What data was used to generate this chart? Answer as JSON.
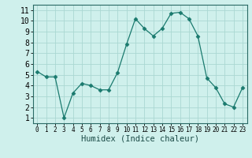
{
  "x": [
    0,
    1,
    2,
    3,
    4,
    5,
    6,
    7,
    8,
    9,
    10,
    11,
    12,
    13,
    14,
    15,
    16,
    17,
    18,
    19,
    20,
    21,
    22,
    23
  ],
  "y": [
    5.3,
    4.8,
    4.8,
    1.0,
    3.3,
    4.2,
    4.0,
    3.6,
    3.6,
    5.2,
    7.8,
    10.2,
    9.3,
    8.6,
    9.3,
    10.7,
    10.8,
    10.2,
    8.6,
    4.7,
    3.8,
    2.3,
    2.0,
    3.8
  ],
  "line_color": "#1a7a6e",
  "marker": "D",
  "marker_size": 2.5,
  "bg_color": "#cff0ec",
  "grid_color": "#aad8d2",
  "xlabel": "Humidex (Indice chaleur)",
  "xlabel_fontsize": 7.5,
  "tick_fontsize": 7,
  "ylim": [
    0.5,
    11.5
  ],
  "xlim": [
    -0.5,
    23.5
  ],
  "yticks": [
    1,
    2,
    3,
    4,
    5,
    6,
    7,
    8,
    9,
    10,
    11
  ],
  "xticks": [
    0,
    1,
    2,
    3,
    4,
    5,
    6,
    7,
    8,
    9,
    10,
    11,
    12,
    13,
    14,
    15,
    16,
    17,
    18,
    19,
    20,
    21,
    22,
    23
  ]
}
